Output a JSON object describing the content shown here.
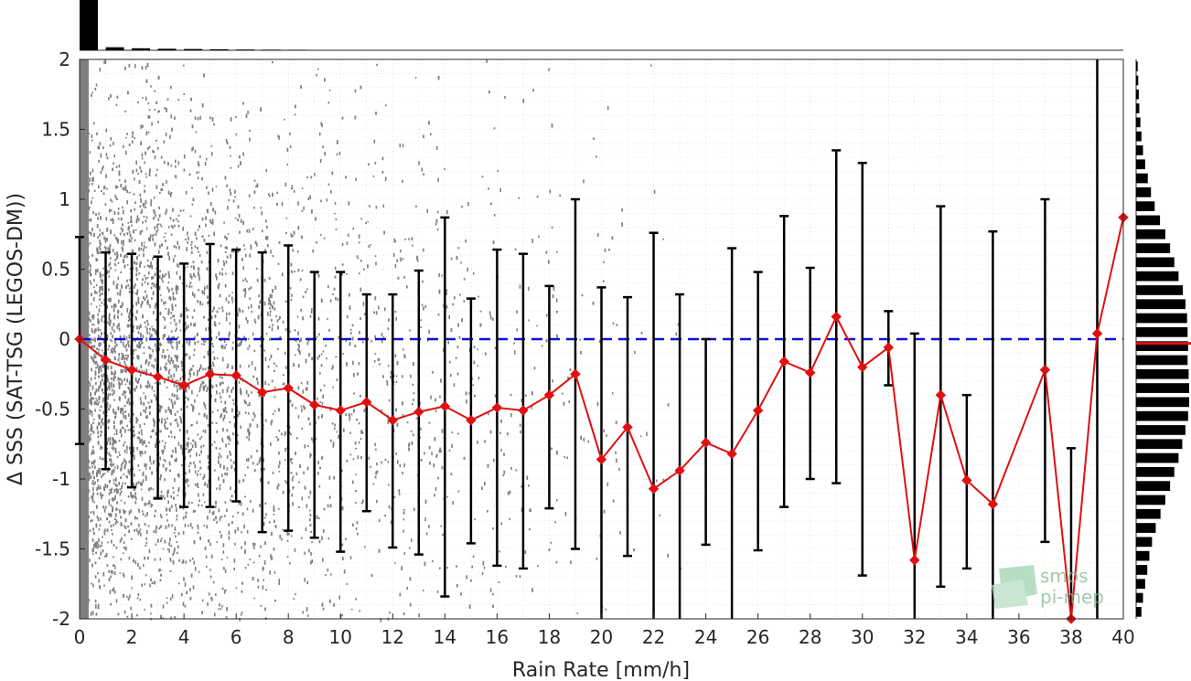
{
  "chart_data": {
    "type": "scatter",
    "title": "",
    "xlabel": "Rain Rate [mm/h]",
    "ylabel": "Δ SSS (SAT-TSG (LEGOS-DM))",
    "xlim": [
      0,
      40
    ],
    "ylim": [
      -2,
      2
    ],
    "x_ticks": [
      "0",
      "2",
      "4",
      "6",
      "8",
      "10",
      "12",
      "14",
      "16",
      "18",
      "20",
      "22",
      "24",
      "26",
      "28",
      "30",
      "32",
      "34",
      "36",
      "38",
      "40"
    ],
    "y_ticks": [
      "-2",
      "-1.5",
      "-1",
      "-0.5",
      "0",
      "0.5",
      "1",
      "1.5",
      "2"
    ],
    "grid": true,
    "reference_line": {
      "y": 0,
      "color": "#1010d0",
      "style": "dashed"
    },
    "scatter_color": "#808080",
    "errorbar_color": "#000000",
    "mean_color": "#e01010",
    "mean_series": {
      "x": [
        0,
        1,
        2,
        3,
        4,
        5,
        6,
        7,
        8,
        9,
        10,
        11,
        12,
        13,
        14,
        15,
        16,
        17,
        18,
        19,
        20,
        21,
        22,
        23,
        24,
        25,
        26,
        27,
        28,
        29,
        30,
        31,
        32,
        33,
        34,
        35,
        36,
        37,
        38,
        39,
        40
      ],
      "y": [
        0,
        -0.15,
        -0.22,
        -0.27,
        -0.33,
        -0.25,
        -0.26,
        -0.38,
        -0.35,
        -0.47,
        -0.51,
        -0.45,
        -0.58,
        -0.52,
        -0.48,
        -0.58,
        -0.49,
        -0.51,
        -0.4,
        -0.25,
        -0.86,
        -0.63,
        -1.07,
        -0.94,
        -0.74,
        -0.82,
        -0.51,
        -0.16,
        -0.24,
        0.16,
        -0.2,
        -0.06,
        -1.58,
        -0.4,
        -1.01,
        -1.18,
        null,
        -0.22,
        -2.0,
        0.04,
        0.87
      ],
      "err_low": [
        -0.75,
        -0.93,
        -1.06,
        -1.14,
        -1.2,
        -1.2,
        -1.16,
        -1.38,
        -1.37,
        -1.42,
        -1.52,
        -1.23,
        -1.49,
        -1.54,
        -1.84,
        -1.46,
        -1.62,
        -1.64,
        -1.21,
        -1.5,
        -2.0,
        -1.55,
        -2.0,
        -2.0,
        -1.47,
        -2.0,
        -1.51,
        -1.2,
        -1.0,
        -1.03,
        -1.69,
        -0.33,
        -2.0,
        -1.77,
        -1.64,
        -2.0,
        null,
        -1.45,
        -2.0,
        -2.0,
        null
      ],
      "err_high": [
        0.73,
        0.62,
        0.61,
        0.59,
        0.54,
        0.68,
        0.64,
        0.62,
        0.67,
        0.48,
        0.48,
        0.32,
        0.32,
        0.49,
        0.87,
        0.29,
        0.64,
        0.61,
        0.38,
        1.0,
        0.37,
        0.3,
        0.76,
        0.32,
        0.0,
        0.65,
        0.48,
        0.88,
        0.51,
        1.35,
        1.26,
        0.2,
        0.04,
        0.95,
        -0.4,
        0.77,
        null,
        1.0,
        -0.78,
        2.0,
        null
      ]
    },
    "top_histogram": {
      "x": [
        0,
        1,
        2,
        3,
        4,
        5,
        6,
        7,
        8
      ],
      "values": [
        1.0,
        0.06,
        0.04,
        0.03,
        0.025,
        0.02,
        0.015,
        0.012,
        0.01
      ]
    },
    "right_histogram": {
      "y": [
        -1.95,
        -1.85,
        -1.75,
        -1.65,
        -1.55,
        -1.45,
        -1.35,
        -1.25,
        -1.15,
        -1.05,
        -0.95,
        -0.85,
        -0.75,
        -0.65,
        -0.55,
        -0.45,
        -0.35,
        -0.25,
        -0.15,
        -0.05,
        0.05,
        0.15,
        0.25,
        0.35,
        0.45,
        0.55,
        0.65,
        0.75,
        0.85,
        0.95,
        1.05,
        1.15,
        1.25,
        1.35,
        1.45,
        1.55,
        1.65,
        1.75,
        1.85,
        1.95
      ],
      "values": [
        0.1,
        0.13,
        0.17,
        0.21,
        0.25,
        0.3,
        0.37,
        0.46,
        0.55,
        0.64,
        0.72,
        0.8,
        0.87,
        0.93,
        0.98,
        1.0,
        1.0,
        0.99,
        0.97,
        0.98,
        0.97,
        0.96,
        0.93,
        0.88,
        0.8,
        0.72,
        0.64,
        0.55,
        0.45,
        0.35,
        0.28,
        0.22,
        0.17,
        0.13,
        0.1,
        0.08,
        0.06,
        0.05,
        0.04,
        0.03
      ],
      "mean_line_y": -0.03
    }
  },
  "logo": {
    "line1": "smos",
    "line2": "pi-mep"
  }
}
